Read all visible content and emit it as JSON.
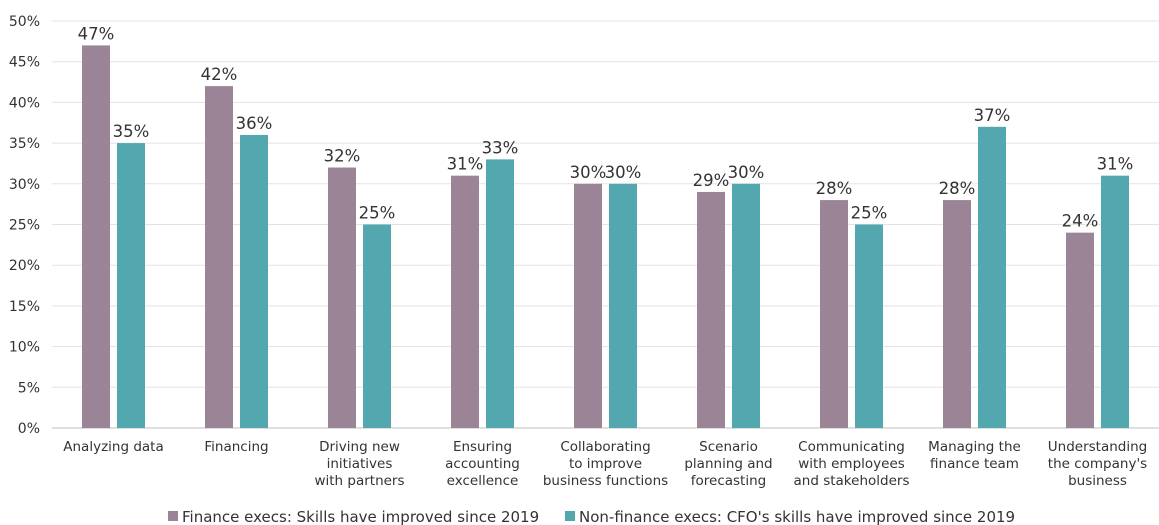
{
  "chart_data": {
    "type": "bar",
    "categories": [
      [
        "Analyzing data"
      ],
      [
        "Financing"
      ],
      [
        "Driving new",
        "initiatives",
        "with partners"
      ],
      [
        "Ensuring",
        "accounting",
        "excellence"
      ],
      [
        "Collaborating",
        "to improve",
        "business functions"
      ],
      [
        "Scenario",
        "planning and",
        "forecasting"
      ],
      [
        "Communicating",
        "with employees",
        "and stakeholders"
      ],
      [
        "Managing the",
        "finance team"
      ],
      [
        "Understanding",
        "the company's",
        "business"
      ]
    ],
    "series": [
      {
        "name": "Finance execs: Skills have improved since 2019",
        "color": "#9a8496",
        "values": [
          47,
          42,
          32,
          31,
          30,
          29,
          28,
          28,
          24
        ],
        "labels": [
          "47%",
          "42%",
          "32%",
          "31%",
          "30%",
          "29%",
          "28%",
          "28%",
          "24%"
        ]
      },
      {
        "name": "Non-finance execs: CFO's skills have improved since 2019",
        "color": "#52a8ae",
        "values": [
          35,
          36,
          25,
          33,
          30,
          30,
          25,
          37,
          31
        ],
        "labels": [
          "35%",
          "36%",
          "25%",
          "33%",
          "30%",
          "30%",
          "25%",
          "37%",
          "31%"
        ]
      }
    ],
    "ylim": [
      0,
      50
    ],
    "yticks": [
      0,
      5,
      10,
      15,
      20,
      25,
      30,
      35,
      40,
      45,
      50
    ],
    "ytick_labels": [
      "0%",
      "5%",
      "10%",
      "15%",
      "20%",
      "25%",
      "30%",
      "35%",
      "40%",
      "45%",
      "50%"
    ],
    "grid": true,
    "legend_position": "bottom",
    "title": "",
    "xlabel": "",
    "ylabel": ""
  }
}
